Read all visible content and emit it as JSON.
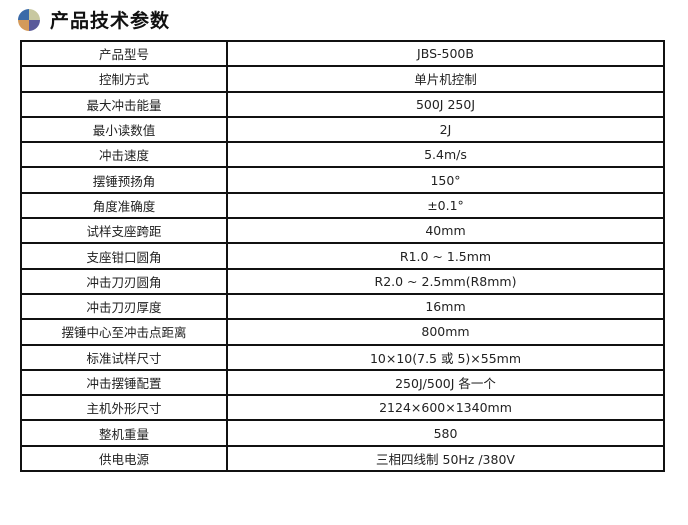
{
  "header": {
    "title": "产品技术参数",
    "icon": "pie-ball-icon",
    "icon_colors": [
      "#3a6aa8",
      "#c8c8a0",
      "#d49a5a",
      "#5a5a9a"
    ]
  },
  "rows": [
    {
      "label": "产品型号",
      "value": "JBS-500B"
    },
    {
      "label": "控制方式",
      "value": "单片机控制"
    },
    {
      "label": "最大冲击能量",
      "value": "500J 250J"
    },
    {
      "label": "最小读数值",
      "value": "2J"
    },
    {
      "label": "冲击速度",
      "value": "5.4m/s"
    },
    {
      "label": "摆锤预扬角",
      "value": "150°"
    },
    {
      "label": "角度准确度",
      "value": "±0.1°"
    },
    {
      "label": "试样支座跨距",
      "value": "40mm"
    },
    {
      "label": "支座钳口圆角",
      "value": "R1.0 ~ 1.5mm"
    },
    {
      "label": "冲击刀刃圆角",
      "value": "R2.0 ~ 2.5mm(R8mm)"
    },
    {
      "label": "冲击刀刃厚度",
      "value": "16mm"
    },
    {
      "label": "摆锤中心至冲击点距离",
      "value": "800mm"
    },
    {
      "label": "标准试样尺寸",
      "value": "10×10(7.5 或 5)×55mm"
    },
    {
      "label": "冲击摆锤配置",
      "value": "250J/500J 各一个"
    },
    {
      "label": "主机外形尺寸",
      "value": "2124×600×1340mm"
    },
    {
      "label": "整机重量",
      "value": "580"
    },
    {
      "label": "供电电源",
      "value": "三相四线制 50Hz /380V"
    }
  ]
}
